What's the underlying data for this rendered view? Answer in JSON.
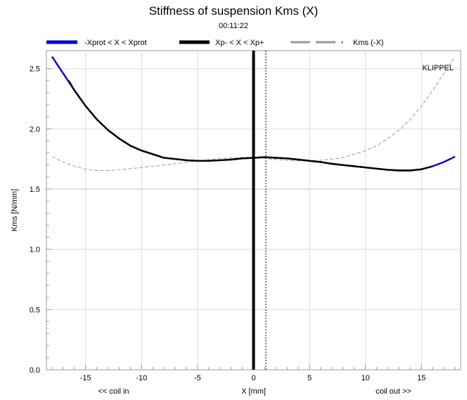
{
  "chart_data": {
    "type": "line",
    "title": "Stiffness of suspension Kms (X)",
    "subtitle": "00:11:22",
    "xlabel": "X [mm]",
    "ylabel": "Kms [N/mm]",
    "xlim": [
      -18.5,
      18.5
    ],
    "ylim": [
      0.0,
      2.65
    ],
    "xticks": [
      -15,
      -10,
      -5,
      0,
      5,
      10,
      15
    ],
    "yticks": [
      0.0,
      0.5,
      1.0,
      1.5,
      2.0,
      2.5
    ],
    "xtick_labels": [
      "-15",
      "-10",
      "-5",
      "0",
      "5",
      "10",
      "15"
    ],
    "ytick_labels": [
      "0.0",
      "0.5",
      "1.0",
      "1.5",
      "2.0",
      "2.5"
    ],
    "x_annotation_left": "<< coil in",
    "x_annotation_right": "coil out >>",
    "watermark": "KLIPPEL",
    "grid": true,
    "legend_position": "top",
    "marker_lines": [
      {
        "x": 0.0,
        "style": "solid-thick"
      },
      {
        "x": 1.1,
        "style": "dotted"
      }
    ],
    "reference_line": {
      "y": 1.5
    },
    "series": [
      {
        "name": "-Xprot < X < Xprot",
        "color": "#0000e0",
        "style": "solid",
        "x": [
          -18.0,
          -17.0,
          -16.0,
          -15.0,
          -14.0,
          -13.0,
          -12.0,
          -11.0,
          -10.0,
          -9.0,
          -8.0,
          -7.0,
          -6.0,
          -5.0,
          -4.0,
          -3.0,
          -2.0,
          -1.0,
          0.0,
          1.0,
          2.0,
          3.0,
          4.0,
          5.0,
          6.0,
          7.0,
          8.0,
          9.0,
          10.0,
          11.0,
          12.0,
          13.0,
          14.0,
          15.0,
          16.0,
          17.0,
          18.0
        ],
        "values": [
          2.6,
          2.46,
          2.32,
          2.19,
          2.08,
          1.99,
          1.92,
          1.86,
          1.82,
          1.79,
          1.76,
          1.75,
          1.74,
          1.735,
          1.735,
          1.74,
          1.745,
          1.755,
          1.76,
          1.765,
          1.76,
          1.755,
          1.745,
          1.735,
          1.725,
          1.71,
          1.7,
          1.69,
          1.68,
          1.67,
          1.66,
          1.655,
          1.655,
          1.665,
          1.69,
          1.725,
          1.77
        ]
      },
      {
        "name": "Xp- < X < Xp+",
        "color": "#000000",
        "style": "solid",
        "x": [
          -16.5,
          -16.0,
          -15.0,
          -14.0,
          -13.0,
          -12.0,
          -11.0,
          -10.0,
          -9.0,
          -8.0,
          -7.0,
          -6.0,
          -5.0,
          -4.0,
          -3.0,
          -2.0,
          -1.0,
          0.0,
          1.0,
          2.0,
          3.0,
          4.0,
          5.0,
          6.0,
          7.0,
          8.0,
          9.0,
          10.0,
          11.0,
          12.0,
          13.0,
          14.0,
          15.0,
          16.0
        ],
        "values": [
          2.4,
          2.32,
          2.19,
          2.08,
          1.99,
          1.92,
          1.86,
          1.82,
          1.79,
          1.76,
          1.75,
          1.74,
          1.735,
          1.735,
          1.74,
          1.745,
          1.755,
          1.76,
          1.765,
          1.76,
          1.755,
          1.745,
          1.735,
          1.725,
          1.71,
          1.7,
          1.69,
          1.68,
          1.67,
          1.66,
          1.655,
          1.655,
          1.665,
          1.69
        ]
      },
      {
        "name": "Kms (-X)",
        "color": "#999999",
        "style": "dashed",
        "x": [
          -18.0,
          -17.0,
          -16.0,
          -15.0,
          -14.0,
          -13.0,
          -12.0,
          -11.0,
          -10.0,
          -9.0,
          -8.0,
          -7.0,
          -6.0,
          -5.0,
          -4.0,
          -3.0,
          -2.0,
          -1.0,
          0.0,
          1.0,
          2.0,
          3.0,
          4.0,
          5.0,
          6.0,
          7.0,
          8.0,
          9.0,
          10.0,
          11.0,
          12.0,
          13.0,
          14.0,
          15.0,
          16.0,
          17.0,
          18.0
        ],
        "values": [
          1.77,
          1.725,
          1.69,
          1.665,
          1.655,
          1.655,
          1.66,
          1.67,
          1.68,
          1.69,
          1.7,
          1.71,
          1.725,
          1.735,
          1.745,
          1.755,
          1.76,
          1.765,
          1.76,
          1.755,
          1.745,
          1.74,
          1.735,
          1.735,
          1.74,
          1.75,
          1.76,
          1.79,
          1.82,
          1.86,
          1.92,
          1.99,
          2.08,
          2.19,
          2.32,
          2.46,
          2.6
        ]
      }
    ]
  }
}
